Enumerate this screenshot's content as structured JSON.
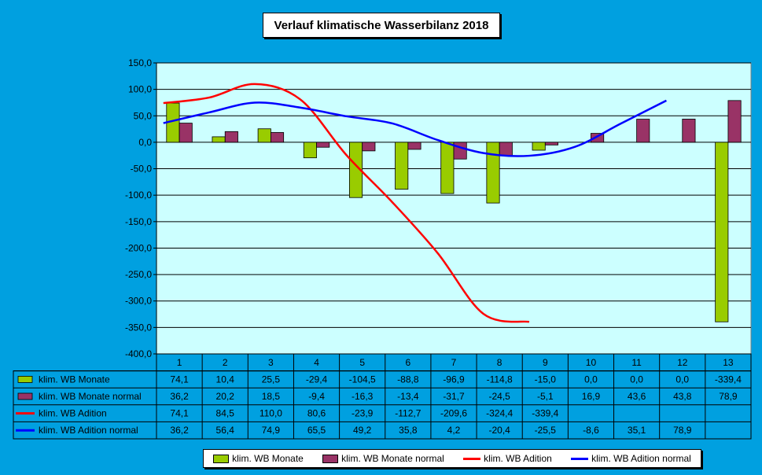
{
  "chart_data": {
    "type": "bar",
    "title": "Verlauf klimatische Wasserbilanz 2018",
    "categories": [
      "1",
      "2",
      "3",
      "4",
      "5",
      "6",
      "7",
      "8",
      "9",
      "10",
      "11",
      "12",
      "13"
    ],
    "ylim": [
      -400,
      150
    ],
    "yticks": [
      150,
      100,
      50,
      0,
      -50,
      -100,
      -150,
      -200,
      -250,
      -300,
      -350,
      -400
    ],
    "ytick_labels": [
      "150,0",
      "100,0",
      "50,0",
      "0,0",
      "-50,0",
      "-100,0",
      "-150,0",
      "-200,0",
      "-250,0",
      "-300,0",
      "-350,0",
      "-400,0"
    ],
    "grid": true,
    "legend_position": "bottom",
    "plot_background": "#ccffff",
    "series": [
      {
        "name": "klim. WB Monate",
        "kind": "bar",
        "color": "#99cc00",
        "values": [
          74.1,
          10.4,
          25.5,
          -29.4,
          -104.5,
          -88.8,
          -96.9,
          -114.8,
          -15.0,
          0.0,
          0.0,
          0.0,
          -339.4
        ],
        "labels": [
          "74,1",
          "10,4",
          "25,5",
          "-29,4",
          "-104,5",
          "-88,8",
          "-96,9",
          "-114,8",
          "-15,0",
          "0,0",
          "0,0",
          "0,0",
          "-339,4"
        ]
      },
      {
        "name": "klim. WB Monate normal",
        "kind": "bar",
        "color": "#993366",
        "values": [
          36.2,
          20.2,
          18.5,
          -9.4,
          -16.3,
          -13.4,
          -31.7,
          -24.5,
          -5.1,
          16.9,
          43.6,
          43.8,
          78.9
        ],
        "labels": [
          "36,2",
          "20,2",
          "18,5",
          "-9,4",
          "-16,3",
          "-13,4",
          "-31,7",
          "-24,5",
          "-5,1",
          "16,9",
          "43,6",
          "43,8",
          "78,9"
        ]
      },
      {
        "name": "klim. WB Adition",
        "kind": "line",
        "color": "#ff0000",
        "values": [
          74.1,
          84.5,
          110.0,
          80.6,
          -23.9,
          -112.7,
          -209.6,
          -324.4,
          -339.4,
          null,
          null,
          null,
          null
        ],
        "labels": [
          "74,1",
          "84,5",
          "110,0",
          "80,6",
          "-23,9",
          "-112,7",
          "-209,6",
          "-324,4",
          "-339,4",
          "",
          "",
          "",
          ""
        ]
      },
      {
        "name": "klim. WB Adition normal",
        "kind": "line",
        "color": "#0000ff",
        "values": [
          36.2,
          56.4,
          74.9,
          65.5,
          49.2,
          35.8,
          4.2,
          -20.4,
          -25.5,
          -8.6,
          35.1,
          78.9,
          null
        ],
        "labels": [
          "36,2",
          "56,4",
          "74,9",
          "65,5",
          "49,2",
          "35,8",
          "4,2",
          "-20,4",
          "-25,5",
          "-8,6",
          "35,1",
          "78,9",
          ""
        ]
      }
    ]
  }
}
